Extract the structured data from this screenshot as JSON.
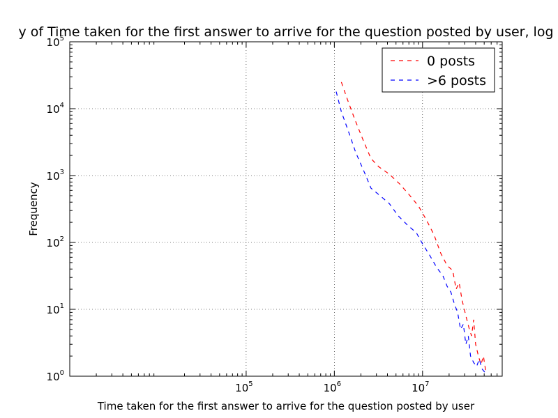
{
  "chart_data": {
    "type": "line",
    "title": "y of Time taken for the first answer to arrive for the question posted by user, log",
    "xlabel": "Time taken for the first answer to arrive for the question posted by user",
    "ylabel": "Frequency",
    "xscale": "log",
    "yscale": "log",
    "xlim": [
      1000,
      80000000
    ],
    "ylim": [
      1,
      100000
    ],
    "x_ticks": [
      {
        "base": "10",
        "exp": "5",
        "value": 100000
      },
      {
        "base": "10",
        "exp": "6",
        "value": 1000000
      },
      {
        "base": "10",
        "exp": "7",
        "value": 10000000
      }
    ],
    "y_ticks": [
      {
        "base": "10",
        "exp": "0",
        "value": 1
      },
      {
        "base": "10",
        "exp": "1",
        "value": 10
      },
      {
        "base": "10",
        "exp": "2",
        "value": 100
      },
      {
        "base": "10",
        "exp": "3",
        "value": 1000
      },
      {
        "base": "10",
        "exp": "4",
        "value": 10000
      },
      {
        "base": "10",
        "exp": "5",
        "value": 100000
      }
    ],
    "grid": true,
    "legend_position": "top-right",
    "series": [
      {
        "name": "0 posts",
        "color": "#ff0000",
        "style": "dashed",
        "points": [
          [
            1200000,
            25000
          ],
          [
            1400000,
            14000
          ],
          [
            1700000,
            7000
          ],
          [
            2100000,
            3500
          ],
          [
            2600000,
            1800
          ],
          [
            3200000,
            1350
          ],
          [
            4200000,
            1050
          ],
          [
            5500000,
            750
          ],
          [
            7200000,
            500
          ],
          [
            9000000,
            350
          ],
          [
            11000000,
            220
          ],
          [
            13500000,
            130
          ],
          [
            16000000,
            70
          ],
          [
            19000000,
            45
          ],
          [
            22000000,
            38
          ],
          [
            24000000,
            20
          ],
          [
            26000000,
            25
          ],
          [
            28000000,
            14
          ],
          [
            31000000,
            8
          ],
          [
            34000000,
            5
          ],
          [
            36000000,
            4
          ],
          [
            38000000,
            7
          ],
          [
            40000000,
            3
          ],
          [
            43000000,
            2
          ],
          [
            46000000,
            1.5
          ],
          [
            49000000,
            2
          ],
          [
            52000000,
            1.2
          ]
        ]
      },
      {
        "name": ">6 posts",
        "color": "#0000ff",
        "style": "dashed",
        "points": [
          [
            1050000,
            18000
          ],
          [
            1200000,
            9000
          ],
          [
            1450000,
            4500
          ],
          [
            1750000,
            2200
          ],
          [
            2200000,
            1100
          ],
          [
            2600000,
            650
          ],
          [
            3300000,
            500
          ],
          [
            4200000,
            380
          ],
          [
            5300000,
            250
          ],
          [
            6800000,
            180
          ],
          [
            8500000,
            140
          ],
          [
            10000000,
            95
          ],
          [
            12000000,
            65
          ],
          [
            14500000,
            42
          ],
          [
            17000000,
            32
          ],
          [
            19000000,
            22
          ],
          [
            21000000,
            18
          ],
          [
            23000000,
            12
          ],
          [
            25000000,
            9
          ],
          [
            27000000,
            5
          ],
          [
            29000000,
            6
          ],
          [
            31000000,
            3
          ],
          [
            33000000,
            4
          ],
          [
            35000000,
            2
          ],
          [
            38000000,
            1.6
          ],
          [
            41000000,
            1.4
          ],
          [
            44000000,
            1.8
          ],
          [
            47000000,
            1.3
          ],
          [
            52000000,
            1.1
          ]
        ]
      }
    ]
  }
}
